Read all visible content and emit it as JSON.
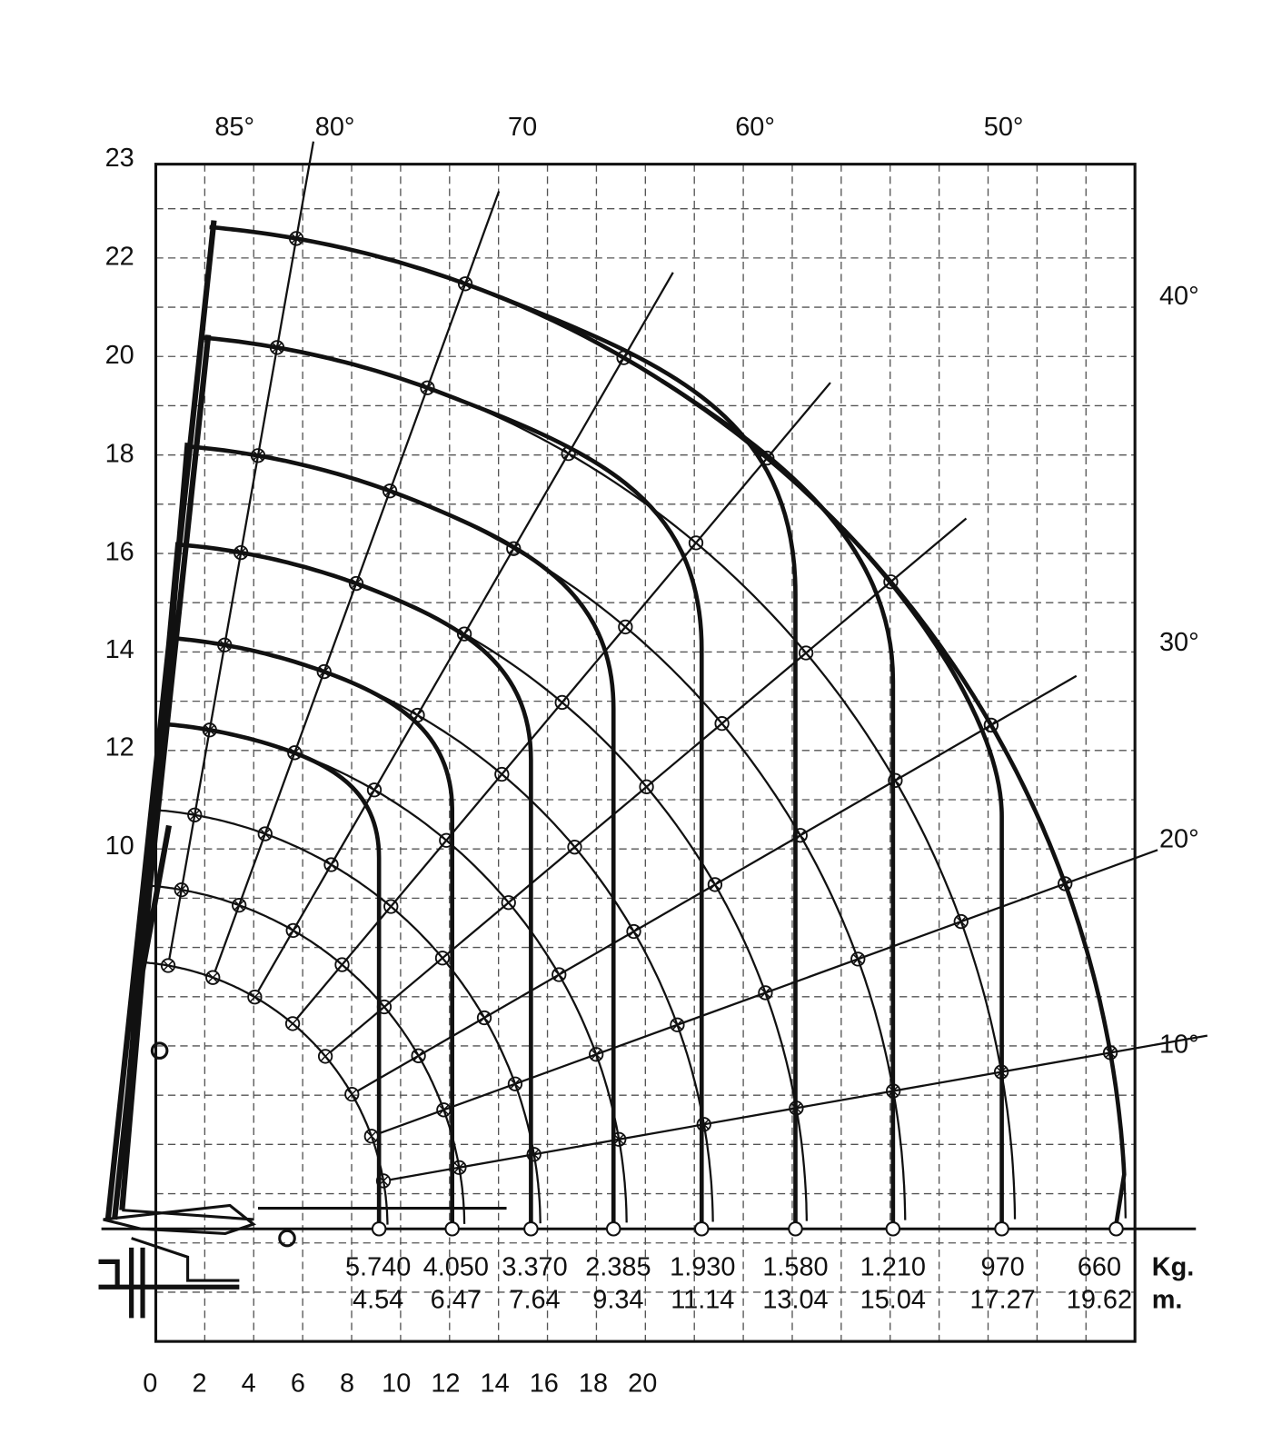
{
  "y_axis": {
    "labels": [
      "23",
      "22",
      "20",
      "18",
      "16",
      "14",
      "12",
      "10"
    ]
  },
  "x_axis": {
    "labels": [
      "0",
      "2",
      "4",
      "6",
      "8",
      "10",
      "12",
      "14",
      "16",
      "18",
      "20"
    ]
  },
  "angle_labels": {
    "top": [
      "85°",
      "80°",
      "70",
      "60°",
      "50°"
    ],
    "right": [
      "40°",
      "30°",
      "20°",
      "10°"
    ]
  },
  "load_table": {
    "loads": [
      "5.740",
      "4.050",
      "3.370",
      "2.385",
      "1.930",
      "1.580",
      "1.210",
      "970",
      "660"
    ],
    "radii": [
      "4.54",
      "6.47",
      "7.64",
      "9.34",
      "11.14",
      "13.04",
      "15.04",
      "17.27",
      "19.62"
    ],
    "units": [
      "Kg.",
      "m."
    ]
  }
}
